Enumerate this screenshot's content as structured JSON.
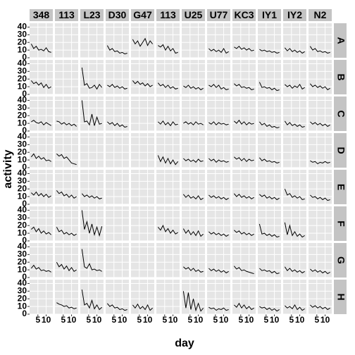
{
  "chart_data": {
    "type": "line",
    "xlabel": "day",
    "ylabel": "activity",
    "color": "#000000",
    "columns": [
      "348",
      "113",
      "L23",
      "D30",
      "G47",
      "113",
      "U25",
      "U77",
      "KC3",
      "IY1",
      "IY2",
      "N2"
    ],
    "rows": [
      "A",
      "B",
      "C",
      "D",
      "E",
      "F",
      "G",
      "H"
    ],
    "x": [
      1,
      2.5,
      4,
      5.5,
      7,
      8.5,
      10,
      11.5,
      13
    ],
    "xlim": [
      0,
      14
    ],
    "xticks": [
      5,
      10
    ],
    "ylim": [
      0,
      45
    ],
    "yticks": [
      0,
      10,
      20,
      30,
      40
    ],
    "grid": true,
    "panels": [
      [
        [
          18,
          12,
          15,
          10,
          11,
          9,
          13,
          8,
          7
        ],
        null,
        null,
        [
          16,
          10,
          12,
          8,
          9,
          6,
          7,
          5,
          6
        ],
        [
          24,
          18,
          22,
          15,
          20,
          25,
          16,
          22,
          18
        ],
        [
          16,
          14,
          17,
          10,
          15,
          9,
          12,
          6,
          7
        ],
        null,
        [
          12,
          9,
          11,
          8,
          10,
          7,
          12,
          6,
          8
        ],
        [
          14,
          12,
          15,
          11,
          13,
          10,
          12,
          9,
          10
        ],
        [
          11,
          9,
          10,
          8,
          9,
          7,
          8,
          6,
          7
        ],
        [
          13,
          9,
          12,
          8,
          10,
          7,
          9,
          6,
          8
        ],
        [
          15,
          10,
          12,
          8,
          9,
          7,
          8,
          6,
          7
        ]
      ],
      [
        [
          18,
          14,
          16,
          12,
          15,
          9,
          13,
          8,
          10
        ],
        null,
        [
          35,
          12,
          14,
          8,
          9,
          12,
          7,
          13,
          9
        ],
        [
          12,
          10,
          13,
          9,
          11,
          8,
          10,
          7,
          8
        ],
        [
          18,
          14,
          17,
          13,
          15,
          11,
          14,
          10,
          12
        ],
        [
          15,
          11,
          13,
          9,
          12,
          8,
          10,
          7,
          8
        ],
        [
          11,
          9,
          12,
          8,
          10,
          7,
          9,
          6,
          8
        ],
        [
          12,
          10,
          13,
          9,
          12,
          7,
          9,
          6,
          7
        ],
        [
          14,
          11,
          13,
          9,
          10,
          8,
          9,
          6,
          7
        ],
        [
          16,
          9,
          10,
          8,
          9,
          6,
          8,
          5,
          6
        ],
        [
          13,
          10,
          12,
          8,
          11,
          9,
          13,
          7,
          9
        ],
        [
          14,
          10,
          12,
          9,
          11,
          8,
          10,
          6,
          8
        ]
      ],
      [
        [
          12,
          14,
          11,
          10,
          12,
          8,
          11,
          9,
          7
        ],
        [
          13,
          12,
          9,
          11,
          8,
          10,
          7,
          9,
          6
        ],
        [
          40,
          12,
          13,
          8,
          22,
          7,
          18,
          9,
          10
        ],
        [
          12,
          9,
          11,
          7,
          10,
          6,
          8,
          5,
          6
        ],
        null,
        [
          12,
          9,
          13,
          8,
          11,
          7,
          12,
          8,
          9
        ],
        [
          10,
          12,
          9,
          11,
          8,
          12,
          9,
          10,
          8
        ],
        [
          11,
          9,
          12,
          8,
          11,
          9,
          10,
          8,
          9
        ],
        [
          13,
          10,
          14,
          9,
          12,
          8,
          11,
          9,
          10
        ],
        [
          12,
          8,
          10,
          6,
          8,
          5,
          6,
          4,
          5
        ],
        [
          13,
          8,
          11,
          7,
          9,
          6,
          8,
          5,
          6
        ],
        [
          12,
          9,
          11,
          8,
          10,
          7,
          9,
          6,
          8
        ]
      ],
      [
        [
          14,
          18,
          12,
          15,
          11,
          13,
          9,
          10,
          8
        ],
        [
          18,
          15,
          17,
          12,
          14,
          10,
          6,
          5,
          4
        ],
        null,
        null,
        null,
        [
          16,
          8,
          14,
          6,
          12,
          5,
          10,
          4,
          8
        ],
        [
          12,
          9,
          11,
          8,
          10,
          7,
          11,
          8,
          9
        ],
        [
          12,
          9,
          11,
          7,
          10,
          8,
          9,
          7,
          8
        ],
        [
          14,
          11,
          13,
          9,
          12,
          8,
          11,
          9,
          10
        ],
        [
          13,
          9,
          11,
          8,
          9,
          7,
          8,
          6,
          7
        ],
        null,
        [
          9,
          7,
          8,
          5,
          7,
          6,
          8,
          6,
          7
        ]
      ],
      [
        [
          15,
          12,
          16,
          11,
          14,
          10,
          13,
          9,
          11
        ],
        [
          18,
          14,
          16,
          11,
          13,
          9,
          12,
          8,
          10
        ],
        [
          14,
          10,
          12,
          9,
          11,
          8,
          10,
          7,
          8
        ],
        null,
        null,
        null,
        [
          13,
          9,
          12,
          8,
          10,
          7,
          11,
          6,
          8
        ],
        [
          12,
          9,
          11,
          8,
          10,
          7,
          9,
          6,
          8
        ],
        [
          14,
          10,
          13,
          9,
          11,
          8,
          10,
          7,
          9
        ],
        [
          13,
          10,
          12,
          8,
          10,
          7,
          9,
          6,
          8
        ],
        [
          20,
          12,
          14,
          9,
          11,
          8,
          10,
          6,
          7
        ],
        [
          12,
          9,
          10,
          7,
          9,
          6,
          8,
          5,
          6
        ]
      ],
      [
        [
          15,
          18,
          12,
          16,
          10,
          13,
          9,
          11,
          8
        ],
        [
          18,
          12,
          14,
          9,
          11,
          8,
          10,
          7,
          9
        ],
        [
          40,
          15,
          25,
          10,
          22,
          8,
          18,
          7,
          19
        ],
        null,
        null,
        [
          18,
          14,
          20,
          12,
          16,
          10,
          14,
          9,
          11
        ],
        [
          16,
          10,
          14,
          8,
          12,
          7,
          13,
          6,
          9
        ],
        [
          12,
          9,
          11,
          8,
          10,
          7,
          9,
          6,
          8
        ],
        [
          14,
          11,
          13,
          9,
          11,
          8,
          10,
          7,
          9
        ],
        [
          22,
          9,
          10,
          7,
          9,
          6,
          8,
          5,
          6
        ],
        [
          24,
          8,
          20,
          7,
          12,
          6,
          9,
          5,
          7
        ],
        null
      ],
      [
        [
          12,
          16,
          11,
          13,
          9,
          10,
          8,
          9,
          7
        ],
        [
          20,
          14,
          17,
          11,
          15,
          9,
          13,
          8,
          10
        ],
        [
          37,
          14,
          12,
          18,
          10,
          11,
          9,
          10,
          8
        ],
        null,
        null,
        null,
        [
          14,
          11,
          13,
          9,
          12,
          8,
          10,
          7,
          8
        ],
        [
          12,
          9,
          11,
          8,
          10,
          7,
          9,
          6,
          8
        ],
        [
          15,
          11,
          13,
          9,
          10,
          8,
          7,
          6,
          5
        ],
        [
          12,
          9,
          10,
          8,
          9,
          6,
          8,
          5,
          6
        ],
        [
          14,
          9,
          12,
          8,
          10,
          7,
          9,
          6,
          8
        ],
        [
          11,
          8,
          10,
          7,
          9,
          6,
          8,
          5,
          7
        ]
      ],
      [
        null,
        [
          15,
          13,
          12,
          10,
          11,
          8,
          9,
          7,
          8
        ],
        [
          32,
          12,
          14,
          8,
          18,
          7,
          12,
          6,
          9
        ],
        [
          14,
          10,
          12,
          8,
          9,
          6,
          7,
          5,
          6
        ],
        [
          12,
          8,
          13,
          7,
          10,
          6,
          12,
          5,
          8
        ],
        null,
        [
          30,
          8,
          28,
          6,
          20,
          5,
          14,
          4,
          8
        ],
        [
          9,
          7,
          8,
          5,
          7,
          6,
          8,
          5,
          6
        ],
        [
          12,
          9,
          14,
          8,
          12,
          7,
          10,
          6,
          8
        ],
        [
          10,
          8,
          9,
          6,
          8,
          5,
          7,
          4,
          6
        ],
        [
          11,
          8,
          10,
          7,
          12,
          6,
          9,
          5,
          7
        ],
        [
          12,
          9,
          11,
          8,
          10,
          7,
          9,
          6,
          8
        ]
      ]
    ]
  }
}
